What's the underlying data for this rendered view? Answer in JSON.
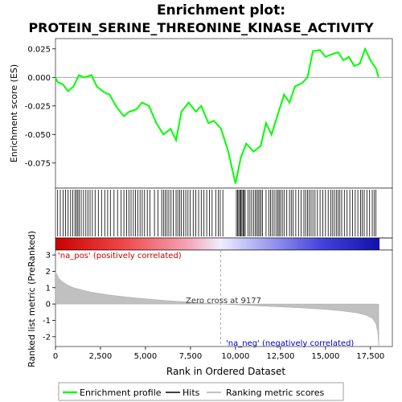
{
  "chart_data": {
    "type": "line",
    "title_line1": "Enrichment plot:",
    "title_line2": "PROTEIN_SERINE_THREONINE_KINASE_ACTIVITY",
    "top_panel": {
      "ylabel": "Enrichment score (ES)",
      "ylim": [
        -0.097,
        0.034
      ],
      "yticks": [
        0.025,
        0.0,
        -0.025,
        -0.05,
        -0.075
      ],
      "ytick_labels": [
        "0.025",
        "0.000",
        "-0.025",
        "-0.050",
        "-0.075"
      ],
      "series_name": "Enrichment profile",
      "line_color": "#00ff00",
      "es_points": [
        [
          0,
          0.0
        ],
        [
          120,
          -0.004
        ],
        [
          400,
          -0.006
        ],
        [
          700,
          -0.012
        ],
        [
          1000,
          -0.008
        ],
        [
          1300,
          0.002
        ],
        [
          1600,
          0.0
        ],
        [
          2000,
          0.002
        ],
        [
          2300,
          -0.008
        ],
        [
          2700,
          -0.013
        ],
        [
          3000,
          -0.015
        ],
        [
          3400,
          -0.026
        ],
        [
          3800,
          -0.034
        ],
        [
          4100,
          -0.03
        ],
        [
          4500,
          -0.028
        ],
        [
          4800,
          -0.022
        ],
        [
          5200,
          -0.025
        ],
        [
          5600,
          -0.04
        ],
        [
          6000,
          -0.05
        ],
        [
          6400,
          -0.045
        ],
        [
          6700,
          -0.055
        ],
        [
          7000,
          -0.03
        ],
        [
          7400,
          -0.022
        ],
        [
          7800,
          -0.03
        ],
        [
          8100,
          -0.025
        ],
        [
          8500,
          -0.04
        ],
        [
          8800,
          -0.038
        ],
        [
          9200,
          -0.045
        ],
        [
          9600,
          -0.065
        ],
        [
          10000,
          -0.093
        ],
        [
          10300,
          -0.07
        ],
        [
          10600,
          -0.058
        ],
        [
          11000,
          -0.065
        ],
        [
          11400,
          -0.06
        ],
        [
          11700,
          -0.04
        ],
        [
          12000,
          -0.05
        ],
        [
          12300,
          -0.035
        ],
        [
          12700,
          -0.015
        ],
        [
          13000,
          -0.022
        ],
        [
          13300,
          -0.008
        ],
        [
          13700,
          -0.005
        ],
        [
          14000,
          0.0
        ],
        [
          14300,
          0.023
        ],
        [
          14700,
          0.024
        ],
        [
          15000,
          0.018
        ],
        [
          15300,
          0.02
        ],
        [
          15700,
          0.022
        ],
        [
          16000,
          0.015
        ],
        [
          16300,
          0.018
        ],
        [
          16600,
          0.01
        ],
        [
          16900,
          0.012
        ],
        [
          17200,
          0.025
        ],
        [
          17500,
          0.015
        ],
        [
          17800,
          0.008
        ],
        [
          17950,
          0.0
        ]
      ]
    },
    "hits_panel": {
      "series_name": "Hits",
      "hit_ranks": [
        120,
        270,
        420,
        560,
        700,
        840,
        960,
        1080,
        1160,
        1240,
        1320,
        1430,
        1560,
        1690,
        1800,
        1920,
        2050,
        2200,
        2380,
        2560,
        2740,
        2900,
        3050,
        3250,
        3450,
        3650,
        3800,
        3950,
        4080,
        4200,
        4330,
        4450,
        4570,
        4700,
        4820,
        4950,
        5100,
        5250,
        5500,
        5700,
        5900,
        6000,
        6100,
        6200,
        6300,
        6420,
        6550,
        6700,
        6800,
        6900,
        7000,
        7120,
        7240,
        7360,
        7480,
        7650,
        7800,
        7950,
        8100,
        8250,
        8400,
        8550,
        8700,
        8900,
        9050,
        9150,
        9300,
        10050,
        10120,
        10180,
        10240,
        10300,
        10360,
        10420,
        10480,
        10540,
        10700,
        10800,
        10900,
        11000,
        11100,
        11180,
        11260,
        11340,
        11420,
        11500,
        11700,
        11850,
        11950,
        12050,
        12150,
        12250,
        12350,
        12420,
        12500,
        12600,
        12700,
        12850,
        13000,
        13100,
        13200,
        13350,
        13500,
        13650,
        13800,
        13900,
        14000,
        14100,
        14200,
        14300,
        14420,
        14550,
        14700,
        14850,
        15000,
        15150,
        15300,
        15400,
        15500,
        15600,
        15700,
        15800,
        15900,
        16050,
        16200,
        16350,
        16500,
        16650,
        16800,
        16950,
        17050,
        17150,
        17300,
        17450,
        17600,
        17700,
        17800
      ]
    },
    "rank_metric_panel": {
      "ylabel": "Ranked list metric (PreRanked)",
      "xlabel": "Rank in Ordered Dataset",
      "ylim": [
        -2.6,
        3.3
      ],
      "yticks": [
        3,
        2,
        1,
        0,
        -1,
        -2
      ],
      "ytick_labels": [
        "3",
        "2",
        "1",
        "0",
        "-1",
        "-2"
      ],
      "xlim": [
        0,
        18000
      ],
      "xticks": [
        0,
        2500,
        5000,
        7500,
        10000,
        12500,
        15000,
        17500
      ],
      "xtick_labels": [
        "0",
        "2,500",
        "5,000",
        "7,500",
        "10,000",
        "12,500",
        "15,000",
        "17,500"
      ],
      "series_name": "Ranking metric scores",
      "metric_points": [
        [
          0,
          2.0
        ],
        [
          60,
          1.85
        ],
        [
          200,
          1.55
        ],
        [
          400,
          1.35
        ],
        [
          700,
          1.15
        ],
        [
          1000,
          1.0
        ],
        [
          1500,
          0.85
        ],
        [
          2000,
          0.72
        ],
        [
          3000,
          0.55
        ],
        [
          4000,
          0.42
        ],
        [
          5000,
          0.32
        ],
        [
          6000,
          0.22
        ],
        [
          7000,
          0.15
        ],
        [
          8000,
          0.08
        ],
        [
          9177,
          0.0
        ],
        [
          10000,
          -0.05
        ],
        [
          11000,
          -0.1
        ],
        [
          12000,
          -0.15
        ],
        [
          13000,
          -0.2
        ],
        [
          14000,
          -0.26
        ],
        [
          15000,
          -0.33
        ],
        [
          16000,
          -0.43
        ],
        [
          16800,
          -0.55
        ],
        [
          17300,
          -0.7
        ],
        [
          17600,
          -0.88
        ],
        [
          17800,
          -1.2
        ],
        [
          17900,
          -1.7
        ],
        [
          17960,
          -2.55
        ]
      ],
      "zero_cross_label": "Zero cross at 9177",
      "zero_cross_rank": 9177,
      "pos_label": "'na_pos' (positively correlated)",
      "neg_label": "'na_neg' (negatively correlated)",
      "pos_color": "#cc0000",
      "neg_color": "#0000cc"
    },
    "legend": {
      "items": [
        {
          "label": "Enrichment profile",
          "color": "#00ff00"
        },
        {
          "label": "Hits",
          "color": "#000000"
        },
        {
          "label": "Ranking metric scores",
          "color": "#c0c0c0"
        }
      ]
    }
  }
}
